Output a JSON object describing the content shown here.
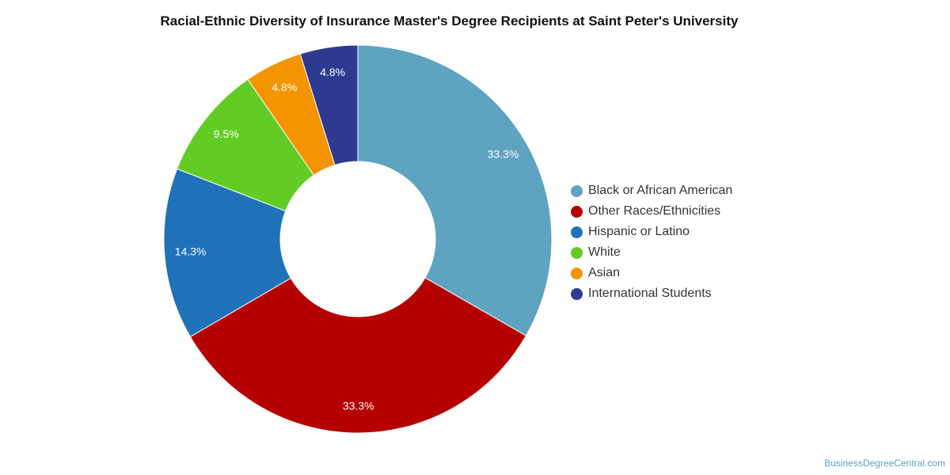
{
  "chart_data": {
    "type": "pie",
    "variant": "donut",
    "title": "Racial-Ethnic Diversity of Insurance Master's Degree Recipients at Saint Peter's University",
    "legend_position": "right",
    "slices": [
      {
        "label": "Black or African American",
        "value": 33.3,
        "display": "33.3%",
        "color": "#5ea3c0"
      },
      {
        "label": "Other Races/Ethnicities",
        "value": 33.3,
        "display": "33.3%",
        "color": "#b50000"
      },
      {
        "label": "Hispanic or Latino",
        "value": 14.3,
        "display": "14.3%",
        "color": "#1f72b8"
      },
      {
        "label": "White",
        "value": 9.5,
        "display": "9.5%",
        "color": "#62cc25"
      },
      {
        "label": "Asian",
        "value": 4.8,
        "display": "4.8%",
        "color": "#f39400"
      },
      {
        "label": "International Students",
        "value": 4.8,
        "display": "4.8%",
        "color": "#2e3a8f"
      }
    ]
  },
  "footer": {
    "source": "BusinessDegreeCentral.com"
  }
}
